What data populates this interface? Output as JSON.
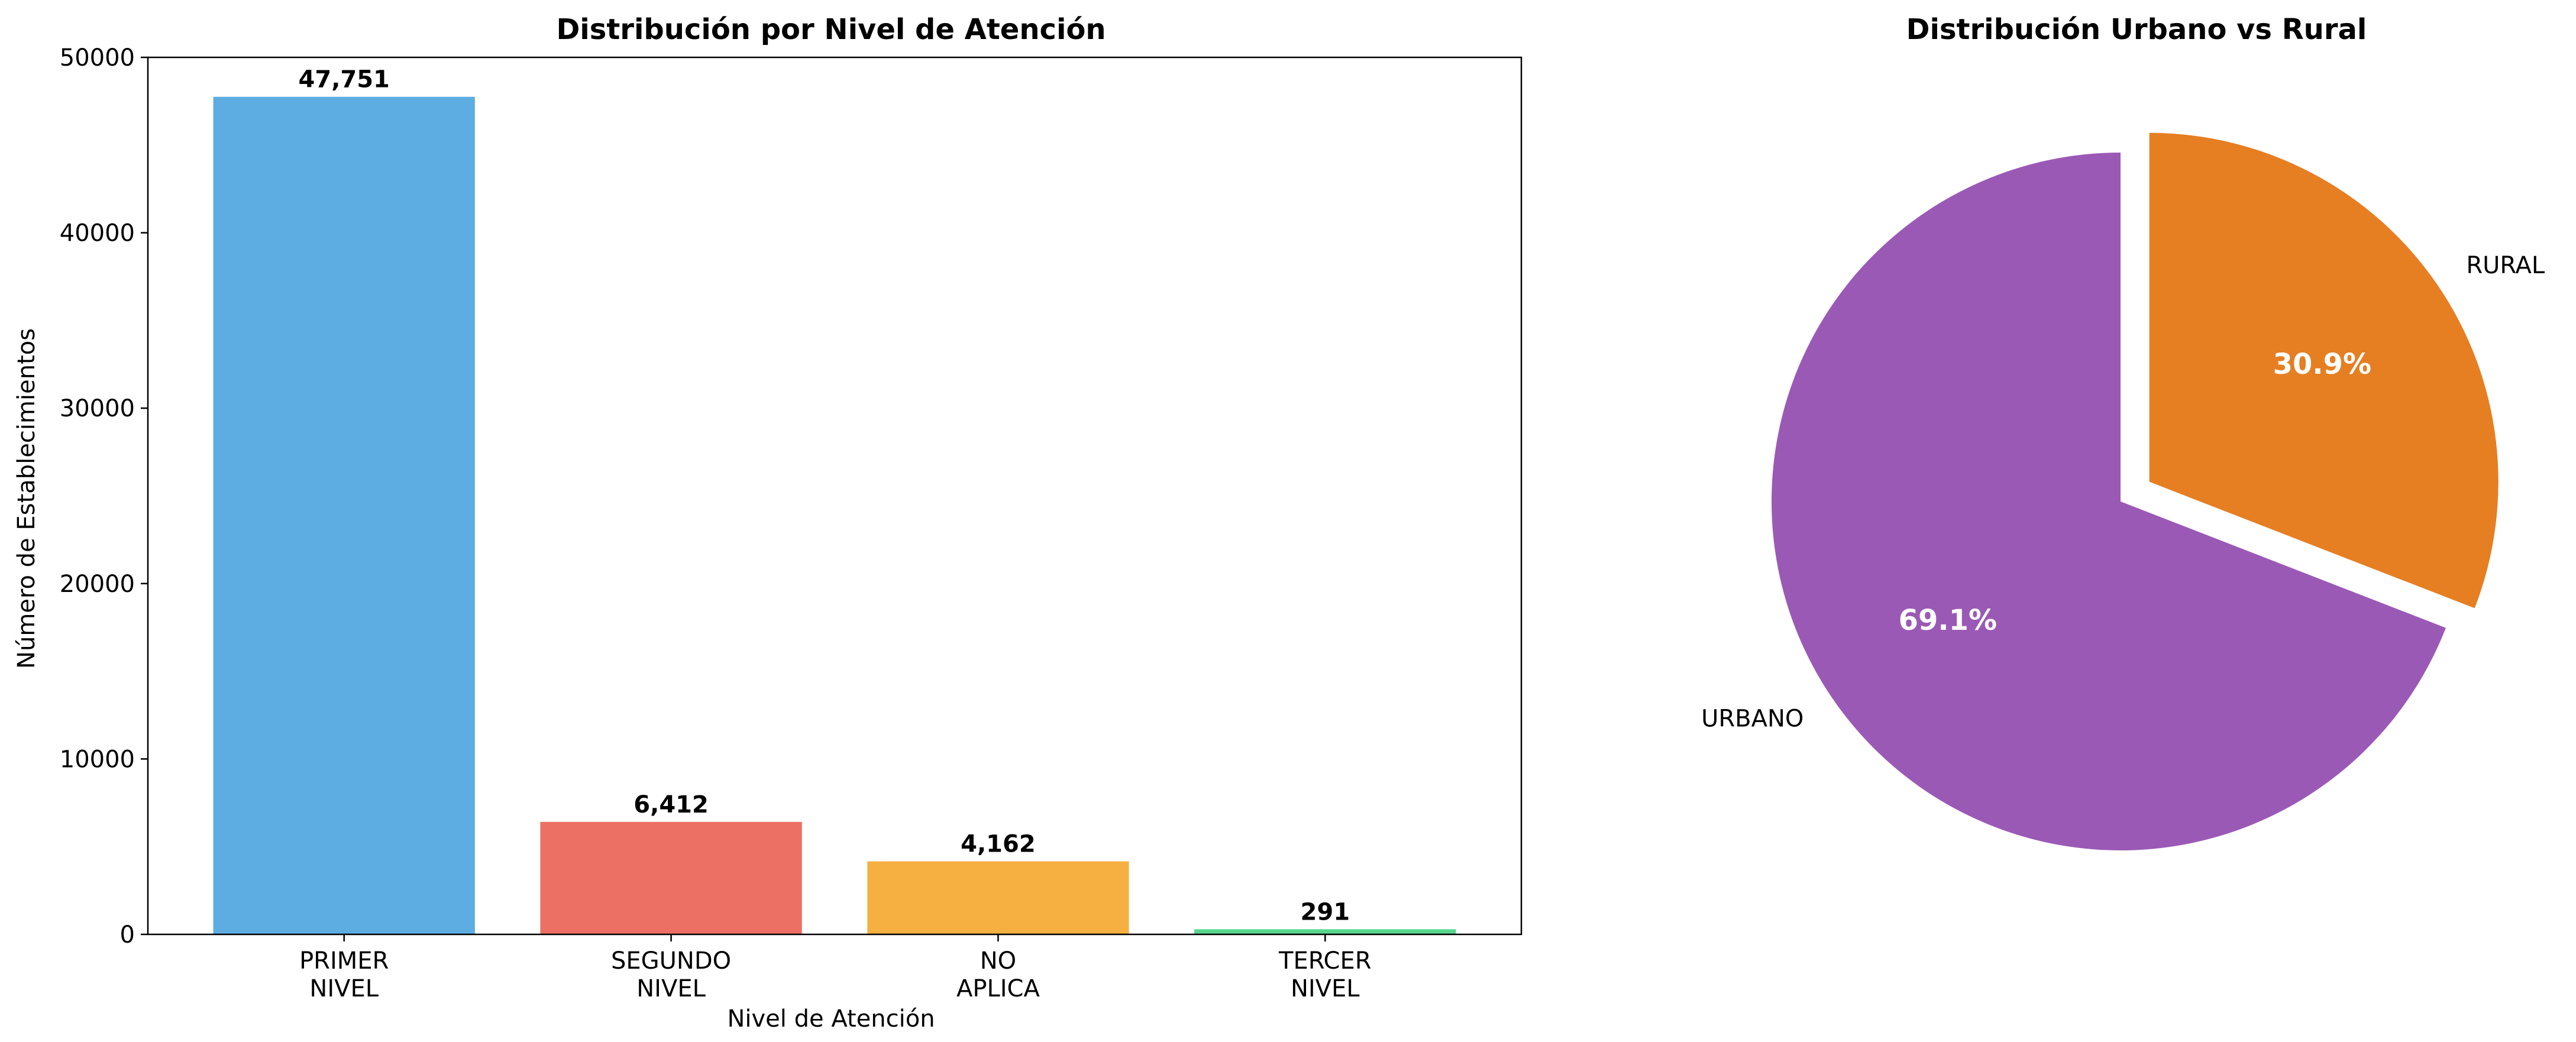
{
  "chart_data": [
    {
      "type": "bar",
      "title": "Distribución por Nivel de Atención",
      "xlabel": "Nivel de Atención",
      "ylabel": "Número de Establecimientos",
      "categories": [
        [
          "PRIMER",
          "NIVEL"
        ],
        [
          "SEGUNDO",
          "NIVEL"
        ],
        [
          "NO",
          "APLICA"
        ],
        [
          "TERCER",
          "NIVEL"
        ]
      ],
      "values": [
        47751,
        6412,
        4162,
        291
      ],
      "value_labels": [
        "47,751",
        "6,412",
        "4,162",
        "291"
      ],
      "colors": [
        "#5DADE2",
        "#EC7063",
        "#F5B041",
        "#58D68D"
      ],
      "ylim": [
        0,
        50000
      ],
      "yticks": [
        0,
        10000,
        20000,
        30000,
        40000,
        50000
      ],
      "ytick_labels": [
        "0",
        "10000",
        "20000",
        "30000",
        "40000",
        "50000"
      ],
      "grid": false,
      "legend": "none"
    },
    {
      "type": "pie",
      "title": "Distribución Urbano vs Rural",
      "slices": [
        {
          "label": "RURAL",
          "value": 30.9,
          "pct_label": "30.9%",
          "color": "#E67E22",
          "exploded": true
        },
        {
          "label": "URBANO",
          "value": 69.1,
          "pct_label": "69.1%",
          "color": "#9B59B6",
          "exploded": false
        }
      ],
      "start_angle_deg": 90,
      "direction": "clockwise",
      "legend": "none"
    }
  ]
}
